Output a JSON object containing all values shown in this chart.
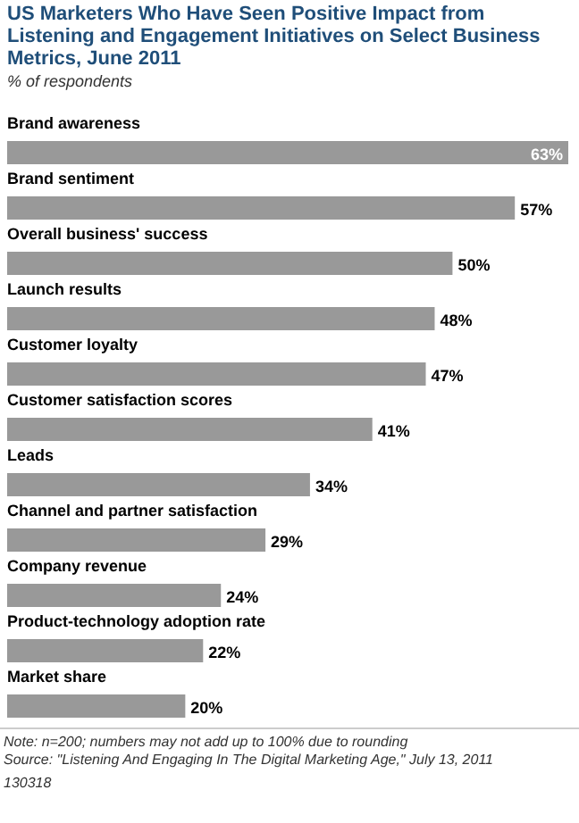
{
  "chart_data": {
    "type": "bar",
    "orientation": "horizontal",
    "title": "US Marketers Who Have Seen Positive Impact from Listening and Engagement Initiatives on Select Business Metrics, June 2011",
    "subtitle": "% of respondents",
    "categories": [
      "Brand awareness",
      "Brand sentiment",
      "Overall business' success",
      "Launch results",
      "Customer loyalty",
      "Customer satisfaction scores",
      "Leads",
      "Channel and partner satisfaction",
      "Company revenue",
      "Product-technology adoption rate",
      "Market share"
    ],
    "values": [
      63,
      57,
      50,
      48,
      47,
      41,
      34,
      29,
      24,
      22,
      20
    ],
    "value_labels": [
      "63%",
      "57%",
      "50%",
      "48%",
      "47%",
      "41%",
      "34%",
      "29%",
      "24%",
      "22%",
      "20%"
    ],
    "color": "#999999",
    "annotations": [
      "Note: n=200; numbers may not add up to 100% due to rounding",
      "Source: \"Listening And Engaging In The Digital Marketing Age,\" July 13, 2011",
      "130318"
    ]
  }
}
